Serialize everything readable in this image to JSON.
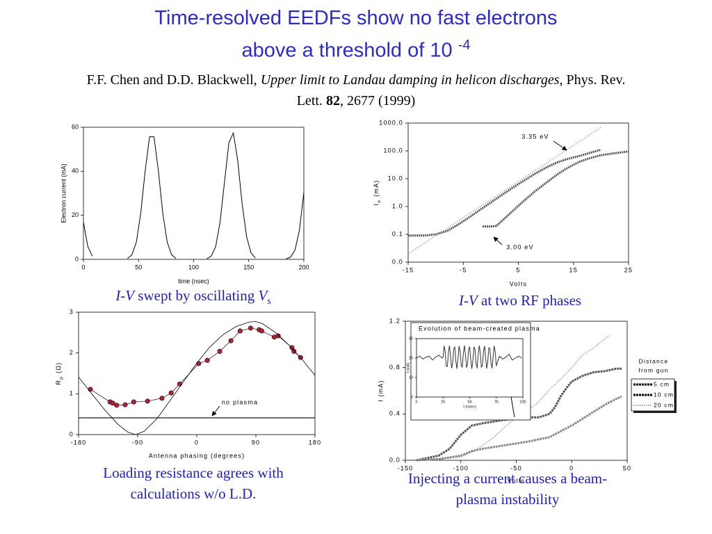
{
  "title": {
    "line1": "Time-resolved EEDFs show no fast electrons",
    "line2": "above a threshold of 10",
    "exponent": "-4"
  },
  "citation": {
    "authors": "F.F. Chen and D.D. Blackwell,",
    "paper": "Upper limit to Landau damping in helicon discharges",
    "journal": ", Phys. Rev. Lett.",
    "volume": "82",
    "pages": ", 2677 (1999)"
  },
  "chart_data": [
    {
      "type": "line",
      "caption": [
        "I-V",
        "swept by oscillating",
        "V",
        "s"
      ],
      "xlabel": "time (nsec)",
      "ylabel": "Electron current (mA)",
      "xlim": [
        0,
        200
      ],
      "xticks": [
        0,
        50,
        100,
        150,
        200
      ],
      "ylim": [
        0,
        60
      ],
      "yticks": [
        0,
        20,
        40,
        60
      ],
      "color": "#000000",
      "x": [
        0,
        4,
        8,
        12,
        16,
        20,
        24,
        28,
        32,
        36,
        40,
        44,
        48,
        52,
        56,
        60,
        64,
        68,
        72,
        76,
        80,
        84,
        88,
        92,
        96,
        100,
        104,
        108,
        112,
        116,
        120,
        124,
        128,
        132,
        136,
        140,
        144,
        148,
        152,
        156,
        160,
        164,
        168,
        172,
        176,
        180,
        184,
        188,
        192,
        196,
        200
      ],
      "values": [
        16.9,
        5.8,
        1.5,
        null,
        null,
        null,
        null,
        null,
        null,
        null,
        0.4,
        2.1,
        7.8,
        20.9,
        40.2,
        55.7,
        55.7,
        40.2,
        20.9,
        7.8,
        2.1,
        0.4,
        null,
        null,
        null,
        null,
        null,
        null,
        0.3,
        1.5,
        5.8,
        16.9,
        35.2,
        53,
        57.4,
        44.9,
        25.3,
        10.4,
        3,
        0.6,
        null,
        null,
        null,
        null,
        null,
        null,
        0.2,
        1,
        4.3,
        13.3,
        30.4
      ]
    },
    {
      "type": "line",
      "caption": [
        "I-V",
        "at two RF phases"
      ],
      "xlabel": "Volts",
      "ylabel": {
        "text": "I",
        "sub": "e",
        "unit": "(mA)"
      },
      "log_y": true,
      "xlim": [
        -15,
        25
      ],
      "xticks": [
        -15,
        -5,
        5,
        15,
        25
      ],
      "ylim": [
        0.01,
        1000
      ],
      "yticks": [
        {
          "value": 0.01,
          "label": "0.0"
        },
        0.1,
        {
          "value": 1,
          "label": "1.0"
        },
        {
          "value": 10,
          "label": "10.0"
        },
        {
          "value": 100,
          "label": "100.0"
        },
        {
          "value": 1000,
          "label": "1000.0"
        }
      ],
      "annotations": [
        "3.35 eV",
        "3.00 eV"
      ],
      "series": [
        {
          "color": "#555555",
          "line_width": 3,
          "dash": "2 1",
          "x": [
            -15,
            -12,
            -10,
            -8,
            -6,
            -4,
            -2,
            0,
            2,
            4,
            6,
            8,
            10,
            12,
            14,
            16,
            18,
            20
          ],
          "values": [
            0.09,
            0.09,
            0.1,
            0.13,
            0.22,
            0.4,
            0.75,
            1.4,
            2.6,
            4.8,
            8.5,
            15,
            25,
            38,
            52,
            65,
            85,
            110
          ]
        },
        {
          "color": "#555555",
          "line_width": 3,
          "dash": "2 1",
          "x": [
            -1.5,
            0,
            1,
            2,
            4,
            6,
            8,
            10,
            12,
            14,
            16,
            18,
            20,
            22,
            24,
            25
          ],
          "values": [
            0.19,
            0.19,
            0.2,
            0.3,
            0.7,
            1.6,
            3.5,
            7,
            14,
            25,
            40,
            55,
            70,
            80,
            90,
            95
          ]
        },
        {
          "color": "#333333",
          "line_width": 0.8,
          "dash": "1 2",
          "x": [
            -15,
            20
          ],
          "values": [
            0.02,
            700
          ]
        }
      ]
    },
    {
      "type": "line",
      "caption": [
        "Loading resistance agrees with calculations w/o L.D."
      ],
      "xlabel": "Antenna phasing (degrees)",
      "ylabel": {
        "text": "R",
        "sub": "p",
        "unit": "(Ω)"
      },
      "xlim": [
        -180,
        180
      ],
      "xticks": [
        -180,
        -90,
        0,
        90,
        180
      ],
      "ylim": [
        0,
        3
      ],
      "yticks": [
        0,
        1,
        2,
        3
      ],
      "annotations": [
        "no plasma"
      ],
      "reference_value": 0.41,
      "series": [
        {
          "color": "#a02838",
          "markers": true,
          "line_width": 0.8,
          "x": [
            -162,
            -132,
            -128,
            -122,
            -109,
            -96,
            -75,
            -53,
            -39,
            -26,
            3,
            16,
            35,
            52,
            66,
            82,
            95,
            99,
            118,
            124,
            145,
            148,
            158
          ],
          "values": [
            1.11,
            0.8,
            0.77,
            0.72,
            0.73,
            0.8,
            0.82,
            0.89,
            1.02,
            1.24,
            1.74,
            1.82,
            2.04,
            2.3,
            2.54,
            2.61,
            2.57,
            2.54,
            2.39,
            2.42,
            2.13,
            2.04,
            1.89
          ]
        },
        {
          "color": "#000000",
          "line_width": 0.8,
          "x": [
            -180,
            -160,
            -140,
            -120,
            -105,
            -93,
            -80,
            -60,
            -40,
            -20,
            0,
            20,
            40,
            60,
            80,
            90,
            100,
            120,
            140,
            160,
            180
          ],
          "values": [
            1.41,
            1.0,
            0.6,
            0.25,
            0.06,
            0,
            0.08,
            0.4,
            0.85,
            1.3,
            1.75,
            2.15,
            2.45,
            2.65,
            2.76,
            2.77,
            2.72,
            2.5,
            2.2,
            1.85,
            1.45
          ]
        }
      ]
    },
    {
      "type": "line",
      "caption": [
        "Injecting a current causes a beam-plasma instability"
      ],
      "xlabel": "Volts",
      "ylabel": "I (mA)",
      "xlim": [
        -150,
        50
      ],
      "xticks": [
        -150,
        -100,
        -50,
        0,
        50
      ],
      "ylim": [
        0,
        1.2
      ],
      "yticks": [
        {
          "value": 0,
          "label": "0.0"
        },
        0.4,
        0.8,
        1.2
      ],
      "legend": "right",
      "legend_title": [
        "Distance",
        "from gun"
      ],
      "series": [
        {
          "name": "5 cm",
          "color": "#555555",
          "line_width": 3,
          "dash": "3 1",
          "x": [
            -140,
            -120,
            -110,
            -100,
            -90,
            -80,
            -60,
            -40,
            -30,
            -20,
            -15,
            -10,
            -5,
            0,
            10,
            20,
            30,
            40,
            45
          ],
          "values": [
            0,
            0.04,
            0.1,
            0.22,
            0.3,
            0.32,
            0.35,
            0.37,
            0.37,
            0.4,
            0.46,
            0.55,
            0.62,
            0.68,
            0.73,
            0.76,
            0.77,
            0.79,
            0.79
          ]
        },
        {
          "name": "10 cm",
          "color": "#8a8a8a",
          "line_width": 3,
          "dash": "3 1",
          "x": [
            -140,
            -120,
            -100,
            -90,
            -80,
            -60,
            -40,
            -30,
            -20,
            -10,
            0,
            10,
            20,
            30,
            40,
            45
          ],
          "values": [
            0,
            0.01,
            0.04,
            0.08,
            0.1,
            0.13,
            0.16,
            0.18,
            0.2,
            0.25,
            0.3,
            0.36,
            0.42,
            0.48,
            0.53,
            0.55
          ]
        },
        {
          "name": "20 cm",
          "color": "#444444",
          "line_width": 1,
          "dash": "1 2",
          "x": [
            -150,
            -120,
            -100,
            -90,
            -80,
            -70,
            -60,
            -50,
            -40,
            -30,
            -20,
            -10,
            0,
            10,
            20,
            30,
            35
          ],
          "values": [
            0,
            0.01,
            0.03,
            0.07,
            0.13,
            0.2,
            0.29,
            0.37,
            0.43,
            0.5,
            0.61,
            0.7,
            0.8,
            0.91,
            0.97,
            1.05,
            1.08
          ]
        }
      ],
      "inset": {
        "type": "line",
        "title": "Evolution of beam-created plasma",
        "xlabel": "t (nsec)",
        "ylabel": "I (mA)",
        "xlim": [
          0,
          100
        ],
        "xticks": [
          0,
          25,
          50,
          75,
          100
        ],
        "ylim": [
          0,
          30
        ],
        "yticks": [
          0,
          10,
          20,
          30
        ],
        "color": "#333333",
        "x": [
          0,
          3,
          6,
          9,
          12,
          15,
          18,
          21,
          24,
          25,
          26,
          27,
          28,
          29,
          30,
          31,
          32,
          33,
          34,
          35,
          36,
          37,
          38,
          39,
          40,
          41,
          42,
          43,
          44,
          45,
          46,
          47,
          48,
          49,
          50,
          51,
          52,
          53,
          54,
          55,
          56,
          57,
          58,
          59,
          60,
          61,
          62,
          63,
          64,
          65,
          66,
          67,
          68,
          69,
          70,
          71,
          72,
          73,
          74,
          75,
          78,
          81,
          84,
          87,
          90,
          93,
          96,
          99
        ],
        "values": [
          20,
          21,
          19.5,
          20.5,
          21,
          19,
          20.5,
          21.5,
          20,
          20.5,
          26.3,
          23.2,
          15.9,
          15.7,
          22.8,
          26.4,
          20.9,
          14.8,
          17.4,
          24.8,
          25.6,
          18.5,
          14.5,
          19.7,
          26.1,
          23.9,
          16.5,
          15.2,
          22.1,
          26.5,
          21.7,
          15.1,
          16.8,
          24.2,
          25.9,
          19.3,
          14.5,
          18.9,
          25.8,
          24.5,
          17.1,
          14.9,
          21.3,
          26.5,
          22.5,
          15.4,
          16.2,
          23.5,
          26.2,
          20.1,
          14.6,
          18.1,
          25.3,
          25.1,
          17.8,
          14.7,
          20.5,
          26.3,
          23.2,
          15.9,
          21,
          19.5,
          20.5,
          22,
          19,
          20,
          21,
          20
        ]
      }
    }
  ]
}
